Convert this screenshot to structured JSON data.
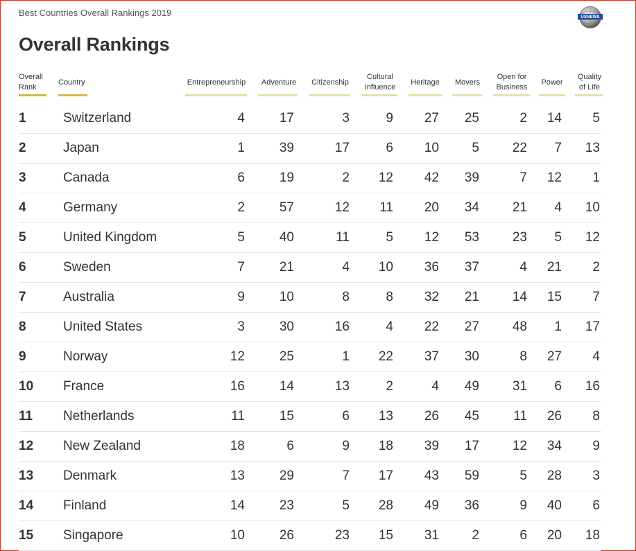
{
  "header": {
    "subtitle": "Best Countries Overall Rankings 2019",
    "logo_text": "USNEWS",
    "title": "Overall Rankings"
  },
  "table": {
    "columns": [
      {
        "key": "rank",
        "label_lines": [
          "Overall",
          "Rank"
        ]
      },
      {
        "key": "country",
        "label_lines": [
          "Country"
        ]
      },
      {
        "key": "entrepreneurship",
        "label_lines": [
          "Entrepreneurship"
        ]
      },
      {
        "key": "adventure",
        "label_lines": [
          "Adventure"
        ]
      },
      {
        "key": "citizenship",
        "label_lines": [
          "Citizenship"
        ]
      },
      {
        "key": "cultural_influence",
        "label_lines": [
          "Cultural",
          "Influence"
        ]
      },
      {
        "key": "heritage",
        "label_lines": [
          "Heritage"
        ]
      },
      {
        "key": "movers",
        "label_lines": [
          "Movers"
        ]
      },
      {
        "key": "open_for_business",
        "label_lines": [
          "Open for",
          "Business"
        ]
      },
      {
        "key": "power",
        "label_lines": [
          "Power"
        ]
      },
      {
        "key": "quality_of_life",
        "label_lines": [
          "Quality",
          "of Life"
        ]
      }
    ],
    "rows": [
      {
        "rank": "1",
        "country": "Switzerland",
        "values": [
          "4",
          "17",
          "3",
          "9",
          "27",
          "25",
          "2",
          "14",
          "5"
        ]
      },
      {
        "rank": "2",
        "country": "Japan",
        "values": [
          "1",
          "39",
          "17",
          "6",
          "10",
          "5",
          "22",
          "7",
          "13"
        ]
      },
      {
        "rank": "3",
        "country": "Canada",
        "values": [
          "6",
          "19",
          "2",
          "12",
          "42",
          "39",
          "7",
          "12",
          "1"
        ]
      },
      {
        "rank": "4",
        "country": "Germany",
        "values": [
          "2",
          "57",
          "12",
          "11",
          "20",
          "34",
          "21",
          "4",
          "10"
        ]
      },
      {
        "rank": "5",
        "country": "United Kingdom",
        "values": [
          "5",
          "40",
          "11",
          "5",
          "12",
          "53",
          "23",
          "5",
          "12"
        ]
      },
      {
        "rank": "6",
        "country": "Sweden",
        "values": [
          "7",
          "21",
          "4",
          "10",
          "36",
          "37",
          "4",
          "21",
          "2"
        ]
      },
      {
        "rank": "7",
        "country": "Australia",
        "values": [
          "9",
          "10",
          "8",
          "8",
          "32",
          "21",
          "14",
          "15",
          "7"
        ]
      },
      {
        "rank": "8",
        "country": "United States",
        "values": [
          "3",
          "30",
          "16",
          "4",
          "22",
          "27",
          "48",
          "1",
          "17"
        ]
      },
      {
        "rank": "9",
        "country": "Norway",
        "values": [
          "12",
          "25",
          "1",
          "22",
          "37",
          "30",
          "8",
          "27",
          "4"
        ]
      },
      {
        "rank": "10",
        "country": "France",
        "values": [
          "16",
          "14",
          "13",
          "2",
          "4",
          "49",
          "31",
          "6",
          "16"
        ]
      },
      {
        "rank": "11",
        "country": "Netherlands",
        "values": [
          "11",
          "15",
          "6",
          "13",
          "26",
          "45",
          "11",
          "26",
          "8"
        ]
      },
      {
        "rank": "12",
        "country": "New Zealand",
        "values": [
          "18",
          "6",
          "9",
          "18",
          "39",
          "17",
          "12",
          "34",
          "9"
        ]
      },
      {
        "rank": "13",
        "country": "Denmark",
        "values": [
          "13",
          "29",
          "7",
          "17",
          "43",
          "59",
          "5",
          "28",
          "3"
        ]
      },
      {
        "rank": "14",
        "country": "Finland",
        "values": [
          "14",
          "23",
          "5",
          "28",
          "49",
          "36",
          "9",
          "40",
          "6"
        ]
      },
      {
        "rank": "15",
        "country": "Singapore",
        "values": [
          "10",
          "26",
          "23",
          "15",
          "31",
          "2",
          "6",
          "20",
          "18"
        ]
      }
    ]
  },
  "chart_data": {
    "type": "table",
    "title": "Overall Rankings",
    "subtitle": "Best Countries Overall Rankings 2019",
    "columns": [
      "Overall Rank",
      "Country",
      "Entrepreneurship",
      "Adventure",
      "Citizenship",
      "Cultural Influence",
      "Heritage",
      "Movers",
      "Open for Business",
      "Power",
      "Quality of Life"
    ],
    "rows": [
      [
        1,
        "Switzerland",
        4,
        17,
        3,
        9,
        27,
        25,
        2,
        14,
        5
      ],
      [
        2,
        "Japan",
        1,
        39,
        17,
        6,
        10,
        5,
        22,
        7,
        13
      ],
      [
        3,
        "Canada",
        6,
        19,
        2,
        12,
        42,
        39,
        7,
        12,
        1
      ],
      [
        4,
        "Germany",
        2,
        57,
        12,
        11,
        20,
        34,
        21,
        4,
        10
      ],
      [
        5,
        "United Kingdom",
        5,
        40,
        11,
        5,
        12,
        53,
        23,
        5,
        12
      ],
      [
        6,
        "Sweden",
        7,
        21,
        4,
        10,
        36,
        37,
        4,
        21,
        2
      ],
      [
        7,
        "Australia",
        9,
        10,
        8,
        8,
        32,
        21,
        14,
        15,
        7
      ],
      [
        8,
        "United States",
        3,
        30,
        16,
        4,
        22,
        27,
        48,
        1,
        17
      ],
      [
        9,
        "Norway",
        12,
        25,
        1,
        22,
        37,
        30,
        8,
        27,
        4
      ],
      [
        10,
        "France",
        16,
        14,
        13,
        2,
        4,
        49,
        31,
        6,
        16
      ],
      [
        11,
        "Netherlands",
        11,
        15,
        6,
        13,
        26,
        45,
        11,
        26,
        8
      ],
      [
        12,
        "New Zealand",
        18,
        6,
        9,
        18,
        39,
        17,
        12,
        34,
        9
      ],
      [
        13,
        "Denmark",
        13,
        29,
        7,
        17,
        43,
        59,
        5,
        28,
        3
      ],
      [
        14,
        "Finland",
        14,
        23,
        5,
        28,
        49,
        36,
        9,
        40,
        6
      ],
      [
        15,
        "Singapore",
        10,
        26,
        23,
        15,
        31,
        2,
        6,
        20,
        18
      ]
    ]
  }
}
